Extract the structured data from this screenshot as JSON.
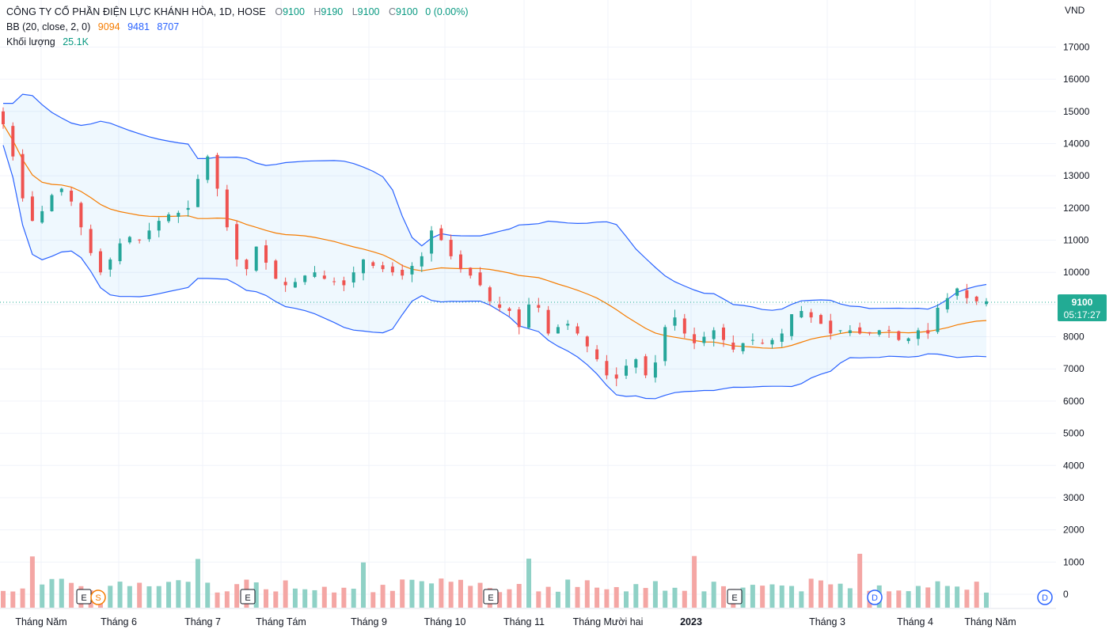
{
  "legend": {
    "title": "CÔNG TY CỔ PHẦN ĐIỆN LỰC KHÁNH HÒA, 1D, HOSE",
    "o_label": "O",
    "o": "9100",
    "h_label": "H",
    "h": "9190",
    "l_label": "L",
    "l": "9100",
    "c_label": "C",
    "c": "9100",
    "change": "0 (0.00%)",
    "bb_label": "BB (20, close, 2, 0)",
    "bb_mid": "9094",
    "bb_upper": "9481",
    "bb_lower": "8707",
    "vol_label": "Khối lượng",
    "vol_value": "25.1K"
  },
  "currency": "VND",
  "price_tag": {
    "price": "9100",
    "timer": "05:17:27"
  },
  "colors": {
    "up": "#26a69a",
    "down": "#ef5350",
    "bb_band": "#2962ff",
    "bb_mid": "#f57c00",
    "vol_up": "#8fd1c6",
    "vol_down": "#f4a6a4"
  },
  "chart_data": {
    "type": "candlestick",
    "y_ticks": [
      0,
      1000,
      2000,
      3000,
      4000,
      5000,
      6000,
      7000,
      8000,
      9000,
      10000,
      11000,
      12000,
      13000,
      14000,
      15000,
      16000,
      17000
    ],
    "y_tick_labels": [
      "0",
      "1000",
      "2000",
      "3000",
      "4000",
      "5000",
      "6000",
      "7000",
      "8000",
      "",
      "10000",
      "11000",
      "12000",
      "13000",
      "14000",
      "15000",
      "16000",
      "17000"
    ],
    "x_labels": [
      "Tháng Năm",
      "Tháng 6",
      "Tháng 7",
      "Tháng Tám",
      "Tháng 9",
      "Tháng 10",
      "Tháng 11",
      "Tháng Mười hai",
      "2023",
      "Tháng 3",
      "Tháng 4",
      "Tháng Năm"
    ],
    "close_series": [
      14600,
      13600,
      12300,
      11600,
      11900,
      12400,
      12600,
      12200,
      11400,
      10600,
      10000,
      10400,
      10900,
      11100,
      11000,
      11300,
      11600,
      11800,
      11850,
      12000,
      12900,
      13600,
      12600,
      11400,
      10400,
      10100,
      10800,
      10300,
      9800,
      9600,
      9700,
      9900,
      10000,
      9800,
      9700,
      9600,
      10000,
      10400,
      10200,
      10100,
      10000,
      9900,
      10200,
      10500,
      11300,
      11000,
      10500,
      10100,
      9900,
      9600,
      9100,
      8900,
      8800,
      8300,
      9000,
      8900,
      8100,
      8300,
      8400,
      8100,
      7700,
      7300,
      6800,
      6700,
      7100,
      7300,
      6800,
      7200,
      8300,
      8600,
      8100,
      7800,
      8000,
      8200,
      7900,
      7600,
      7800,
      7900,
      7800,
      7900,
      8100,
      8700,
      8800,
      8600,
      8400,
      8100,
      8200,
      8200,
      8100,
      8100,
      8200,
      8200,
      7900,
      7950,
      8200,
      8100,
      8900,
      9200,
      9500,
      9200,
      9100,
      9100
    ]
  },
  "event_markers": [
    "E",
    "S",
    "E",
    "E",
    "E",
    "D",
    "D"
  ]
}
